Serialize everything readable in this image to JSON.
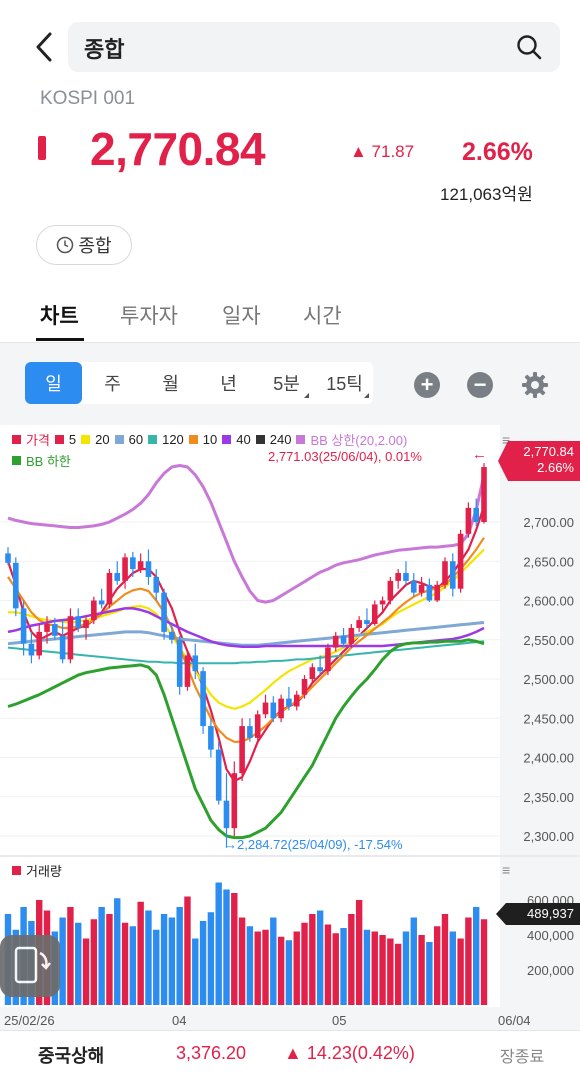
{
  "header": {
    "search_value": "종합",
    "code": "KOSPI 001"
  },
  "quote": {
    "price": "2,770.84",
    "change_abs": "▲ 71.87",
    "change_pct": "2.66%",
    "volume": "121,063억원",
    "chip_label": "종합"
  },
  "tabs": [
    "차트",
    "투자자",
    "일자",
    "시간"
  ],
  "period_tabs": [
    "일",
    "주",
    "월",
    "년",
    "5분",
    "15틱"
  ],
  "legend": {
    "items": [
      "가격",
      "5",
      "20",
      "60",
      "120",
      "10",
      "40",
      "240",
      "BB 상한(20,2.00)"
    ],
    "bb_lower": "BB 하한",
    "volume_label": "거래량"
  },
  "price_axis": [
    "2,700.00",
    "2,650.00",
    "2,600.00",
    "2,550.00",
    "2,500.00",
    "2,450.00",
    "2,400.00",
    "2,350.00",
    "2,300.00"
  ],
  "price_tag": {
    "price": "2,770.84",
    "pct": "2.66%"
  },
  "annotations": {
    "high": "2,771.03(25/06/04), 0.01%",
    "low": "→2,284.72(25/04/09), -17.54%"
  },
  "volume_axis": [
    "600,000",
    "400,000",
    "200,000"
  ],
  "volume_tag": "489,937",
  "x_axis": [
    "25/02/26",
    "04",
    "05",
    "06/04"
  ],
  "bottom": {
    "name": "중국상해",
    "price": "3,376.20",
    "change": "▲ 14.23(0.42%)",
    "status": "장종료"
  },
  "colors": {
    "up": "#e2214a",
    "down": "#2d8cf0",
    "ma5": "#e2214a",
    "ma20": "#f5e400",
    "ma60": "#7fa8d4",
    "ma120": "#36b5aa",
    "ma10": "#f08c1e",
    "ma40": "#9b39e6",
    "ma240": "#333333",
    "bb_upper": "#c878d6",
    "bb_lower": "#2ea02e"
  },
  "chart_data": {
    "type": "candlestick",
    "title": "",
    "x_labels": [
      "25/02/26",
      "04",
      "05",
      "06/04"
    ],
    "y_range": [
      2290,
      2780
    ],
    "last_close": 2770.84,
    "period_high": 2771.03,
    "period_low": 2284.72,
    "candles": [
      {
        "o": 2660,
        "h": 2668,
        "l": 2645,
        "c": 2648
      },
      {
        "o": 2648,
        "h": 2655,
        "l": 2580,
        "c": 2590
      },
      {
        "o": 2590,
        "h": 2600,
        "l": 2530,
        "c": 2545
      },
      {
        "o": 2545,
        "h": 2560,
        "l": 2520,
        "c": 2530
      },
      {
        "o": 2530,
        "h": 2570,
        "l": 2525,
        "c": 2560
      },
      {
        "o": 2560,
        "h": 2580,
        "l": 2545,
        "c": 2570
      },
      {
        "o": 2570,
        "h": 2578,
        "l": 2550,
        "c": 2555
      },
      {
        "o": 2555,
        "h": 2575,
        "l": 2520,
        "c": 2525
      },
      {
        "o": 2525,
        "h": 2590,
        "l": 2520,
        "c": 2580
      },
      {
        "o": 2580,
        "h": 2590,
        "l": 2560,
        "c": 2565
      },
      {
        "o": 2565,
        "h": 2580,
        "l": 2550,
        "c": 2575
      },
      {
        "o": 2575,
        "h": 2605,
        "l": 2570,
        "c": 2600
      },
      {
        "o": 2600,
        "h": 2615,
        "l": 2590,
        "c": 2595
      },
      {
        "o": 2595,
        "h": 2640,
        "l": 2590,
        "c": 2635
      },
      {
        "o": 2635,
        "h": 2650,
        "l": 2620,
        "c": 2625
      },
      {
        "o": 2625,
        "h": 2660,
        "l": 2615,
        "c": 2655
      },
      {
        "o": 2655,
        "h": 2662,
        "l": 2630,
        "c": 2640
      },
      {
        "o": 2640,
        "h": 2660,
        "l": 2635,
        "c": 2650
      },
      {
        "o": 2650,
        "h": 2665,
        "l": 2620,
        "c": 2630
      },
      {
        "o": 2630,
        "h": 2640,
        "l": 2600,
        "c": 2610
      },
      {
        "o": 2610,
        "h": 2615,
        "l": 2550,
        "c": 2560
      },
      {
        "o": 2560,
        "h": 2570,
        "l": 2545,
        "c": 2550
      },
      {
        "o": 2550,
        "h": 2555,
        "l": 2480,
        "c": 2490
      },
      {
        "o": 2490,
        "h": 2535,
        "l": 2485,
        "c": 2530
      },
      {
        "o": 2530,
        "h": 2545,
        "l": 2500,
        "c": 2510
      },
      {
        "o": 2510,
        "h": 2515,
        "l": 2430,
        "c": 2440
      },
      {
        "o": 2440,
        "h": 2450,
        "l": 2400,
        "c": 2410
      },
      {
        "o": 2410,
        "h": 2420,
        "l": 2340,
        "c": 2345
      },
      {
        "o": 2345,
        "h": 2380,
        "l": 2285,
        "c": 2310
      },
      {
        "o": 2310,
        "h": 2395,
        "l": 2300,
        "c": 2380
      },
      {
        "o": 2380,
        "h": 2450,
        "l": 2370,
        "c": 2440
      },
      {
        "o": 2440,
        "h": 2450,
        "l": 2420,
        "c": 2425
      },
      {
        "o": 2425,
        "h": 2460,
        "l": 2420,
        "c": 2455
      },
      {
        "o": 2455,
        "h": 2480,
        "l": 2450,
        "c": 2470
      },
      {
        "o": 2470,
        "h": 2478,
        "l": 2445,
        "c": 2450
      },
      {
        "o": 2450,
        "h": 2480,
        "l": 2445,
        "c": 2475
      },
      {
        "o": 2475,
        "h": 2490,
        "l": 2460,
        "c": 2465
      },
      {
        "o": 2465,
        "h": 2485,
        "l": 2460,
        "c": 2480
      },
      {
        "o": 2480,
        "h": 2505,
        "l": 2475,
        "c": 2500
      },
      {
        "o": 2500,
        "h": 2520,
        "l": 2495,
        "c": 2515
      },
      {
        "o": 2515,
        "h": 2530,
        "l": 2505,
        "c": 2510
      },
      {
        "o": 2510,
        "h": 2545,
        "l": 2505,
        "c": 2540
      },
      {
        "o": 2540,
        "h": 2560,
        "l": 2535,
        "c": 2555
      },
      {
        "o": 2555,
        "h": 2565,
        "l": 2540,
        "c": 2545
      },
      {
        "o": 2545,
        "h": 2570,
        "l": 2540,
        "c": 2565
      },
      {
        "o": 2565,
        "h": 2580,
        "l": 2560,
        "c": 2575
      },
      {
        "o": 2575,
        "h": 2590,
        "l": 2565,
        "c": 2570
      },
      {
        "o": 2570,
        "h": 2600,
        "l": 2568,
        "c": 2595
      },
      {
        "o": 2595,
        "h": 2605,
        "l": 2585,
        "c": 2600
      },
      {
        "o": 2600,
        "h": 2630,
        "l": 2595,
        "c": 2625
      },
      {
        "o": 2625,
        "h": 2640,
        "l": 2615,
        "c": 2635
      },
      {
        "o": 2635,
        "h": 2650,
        "l": 2620,
        "c": 2625
      },
      {
        "o": 2625,
        "h": 2635,
        "l": 2605,
        "c": 2610
      },
      {
        "o": 2610,
        "h": 2630,
        "l": 2605,
        "c": 2620
      },
      {
        "o": 2620,
        "h": 2628,
        "l": 2598,
        "c": 2600
      },
      {
        "o": 2600,
        "h": 2625,
        "l": 2598,
        "c": 2620
      },
      {
        "o": 2620,
        "h": 2655,
        "l": 2615,
        "c": 2650
      },
      {
        "o": 2650,
        "h": 2660,
        "l": 2605,
        "c": 2615
      },
      {
        "o": 2615,
        "h": 2690,
        "l": 2610,
        "c": 2685
      },
      {
        "o": 2685,
        "h": 2725,
        "l": 2680,
        "c": 2718
      },
      {
        "o": 2718,
        "h": 2730,
        "l": 2695,
        "c": 2700
      },
      {
        "o": 2700,
        "h": 2775,
        "l": 2698,
        "c": 2770
      }
    ],
    "series": [
      {
        "name": "5",
        "values": [
          2650,
          2620,
          2585,
          2560,
          2550,
          2555,
          2560,
          2555,
          2560,
          2565,
          2568,
          2575,
          2585,
          2600,
          2615,
          2625,
          2635,
          2640,
          2640,
          2630,
          2610,
          2590,
          2560,
          2535,
          2515,
          2490,
          2460,
          2425,
          2385,
          2370,
          2375,
          2395,
          2420,
          2435,
          2450,
          2460,
          2465,
          2470,
          2480,
          2495,
          2505,
          2515,
          2525,
          2535,
          2545,
          2555,
          2565,
          2575,
          2585,
          2600,
          2610,
          2620,
          2625,
          2622,
          2618,
          2615,
          2625,
          2635,
          2650,
          2665,
          2690,
          2720
        ]
      },
      {
        "name": "20",
        "values": [
          2585,
          2585,
          2583,
          2580,
          2577,
          2575,
          2574,
          2573,
          2572,
          2573,
          2575,
          2577,
          2580,
          2583,
          2586,
          2590,
          2592,
          2593,
          2590,
          2583,
          2570,
          2555,
          2540,
          2525,
          2510,
          2495,
          2480,
          2470,
          2465,
          2462,
          2465,
          2470,
          2478,
          2486,
          2495,
          2503,
          2510,
          2515,
          2520,
          2525,
          2528,
          2530,
          2535,
          2540,
          2548,
          2555,
          2560,
          2565,
          2570,
          2578,
          2585,
          2590,
          2595,
          2600,
          2605,
          2610,
          2617,
          2625,
          2635,
          2645,
          2655,
          2665
        ]
      },
      {
        "name": "60",
        "values": [
          2545,
          2546,
          2547,
          2548,
          2549,
          2550,
          2551,
          2552,
          2553,
          2554,
          2555,
          2556,
          2557,
          2558,
          2559,
          2560,
          2560,
          2560,
          2559,
          2557,
          2555,
          2553,
          2551,
          2550,
          2549,
          2548,
          2547,
          2546,
          2545,
          2544,
          2543,
          2543,
          2543,
          2544,
          2545,
          2546,
          2547,
          2548,
          2549,
          2550,
          2551,
          2552,
          2553,
          2554,
          2555,
          2556,
          2557,
          2558,
          2559,
          2560,
          2561,
          2562,
          2563,
          2564,
          2565,
          2566,
          2567,
          2568,
          2569,
          2570,
          2571,
          2572
        ]
      },
      {
        "name": "120",
        "values": [
          2540,
          2539,
          2538,
          2537,
          2536,
          2535,
          2534,
          2533,
          2532,
          2531,
          2530,
          2529,
          2528,
          2527,
          2526,
          2525,
          2524,
          2523,
          2522,
          2522,
          2521,
          2521,
          2520,
          2520,
          2520,
          2520,
          2520,
          2520,
          2520,
          2520,
          2521,
          2521,
          2522,
          2522,
          2523,
          2523,
          2524,
          2525,
          2525,
          2526,
          2527,
          2528,
          2529,
          2530,
          2531,
          2532,
          2533,
          2534,
          2535,
          2536,
          2537,
          2538,
          2539,
          2540,
          2541,
          2542,
          2543,
          2544,
          2545,
          2546,
          2547,
          2548
        ]
      },
      {
        "name": "10",
        "values": [
          2630,
          2615,
          2600,
          2585,
          2575,
          2570,
          2568,
          2565,
          2565,
          2567,
          2570,
          2575,
          2583,
          2592,
          2600,
          2608,
          2613,
          2615,
          2612,
          2600,
          2585,
          2565,
          2540,
          2515,
          2490,
          2470,
          2450,
          2435,
          2425,
          2420,
          2420,
          2425,
          2432,
          2440,
          2450,
          2458,
          2465,
          2472,
          2480,
          2490,
          2500,
          2510,
          2520,
          2530,
          2540,
          2548,
          2556,
          2564,
          2572,
          2580,
          2590,
          2598,
          2605,
          2610,
          2613,
          2616,
          2620,
          2630,
          2640,
          2652,
          2665,
          2680
        ]
      },
      {
        "name": "40",
        "values": [
          2560,
          2562,
          2565,
          2568,
          2570,
          2572,
          2574,
          2575,
          2576,
          2578,
          2580,
          2582,
          2584,
          2586,
          2588,
          2590,
          2590,
          2588,
          2585,
          2580,
          2575,
          2570,
          2565,
          2560,
          2556,
          2552,
          2548,
          2545,
          2543,
          2542,
          2541,
          2541,
          2541,
          2542,
          2542,
          2542,
          2542,
          2542,
          2542,
          2542,
          2542,
          2542,
          2542,
          2542,
          2542,
          2542,
          2542,
          2542,
          2542,
          2543,
          2544,
          2545,
          2546,
          2547,
          2548,
          2549,
          2550,
          2551,
          2553,
          2556,
          2560,
          2565
        ]
      },
      {
        "name": "BB 상한(20,2.00)",
        "values": [
          2705,
          2702,
          2700,
          2698,
          2697,
          2696,
          2695,
          2694,
          2693,
          2693,
          2694,
          2695,
          2697,
          2700,
          2705,
          2710,
          2716,
          2724,
          2735,
          2750,
          2762,
          2770,
          2772,
          2770,
          2760,
          2745,
          2725,
          2700,
          2675,
          2650,
          2630,
          2612,
          2600,
          2598,
          2600,
          2606,
          2612,
          2618,
          2624,
          2630,
          2636,
          2640,
          2645,
          2648,
          2650,
          2652,
          2655,
          2658,
          2660,
          2662,
          2664,
          2665,
          2666,
          2667,
          2668,
          2668,
          2669,
          2670,
          2672,
          2685,
          2715,
          2760
        ]
      },
      {
        "name": "BB 하한",
        "values": [
          2465,
          2468,
          2472,
          2476,
          2480,
          2485,
          2490,
          2495,
          2500,
          2505,
          2508,
          2510,
          2512,
          2514,
          2515,
          2516,
          2517,
          2518,
          2515,
          2505,
          2480,
          2450,
          2420,
          2390,
          2360,
          2340,
          2320,
          2308,
          2300,
          2298,
          2298,
          2300,
          2305,
          2310,
          2320,
          2330,
          2345,
          2360,
          2375,
          2390,
          2410,
          2430,
          2450,
          2465,
          2478,
          2490,
          2500,
          2512,
          2525,
          2535,
          2542,
          2545,
          2546,
          2546,
          2547,
          2547,
          2548,
          2548,
          2548,
          2550,
          2548,
          2545
        ]
      }
    ],
    "volume": [
      520,
      430,
      560,
      480,
      600,
      540,
      420,
      500,
      560,
      470,
      380,
      490,
      560,
      520,
      610,
      470,
      450,
      590,
      540,
      430,
      520,
      500,
      560,
      620,
      380,
      480,
      530,
      700,
      660,
      640,
      500,
      450,
      420,
      430,
      500,
      390,
      370,
      420,
      470,
      520,
      540,
      460,
      410,
      440,
      520,
      600,
      430,
      420,
      400,
      380,
      350,
      420,
      500,
      400,
      360,
      450,
      520,
      420,
      380,
      500,
      560,
      490
    ]
  }
}
